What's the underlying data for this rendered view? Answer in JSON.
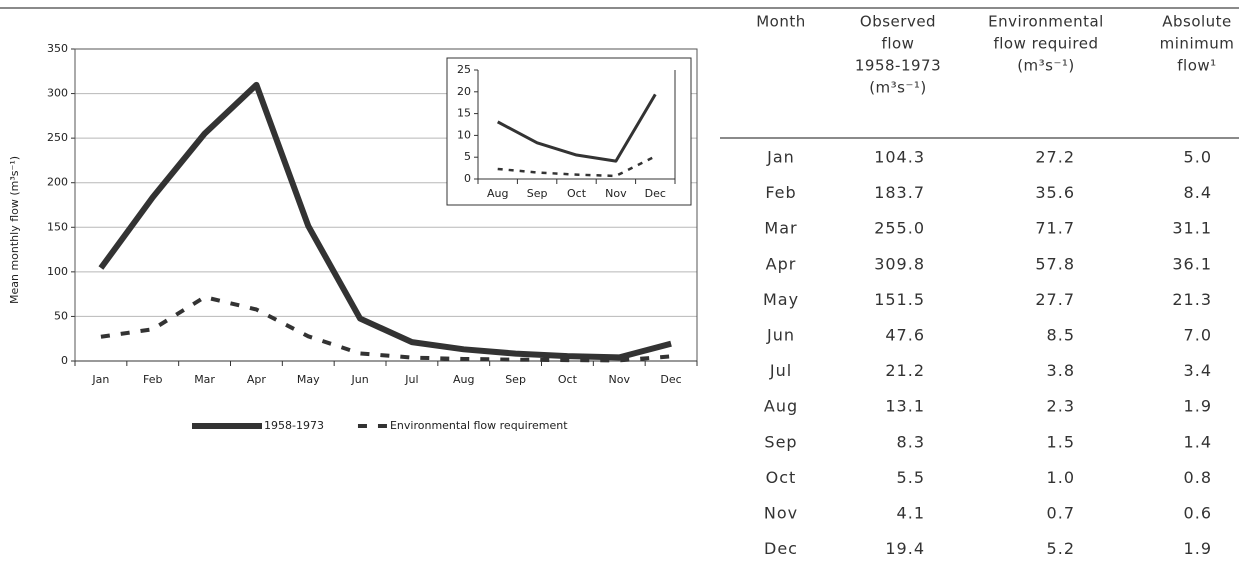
{
  "chart_data": [
    {
      "type": "line",
      "y_label": "Mean monthly flow (m³s⁻¹)",
      "categories": [
        "Jan",
        "Feb",
        "Mar",
        "Apr",
        "May",
        "Jun",
        "Jul",
        "Aug",
        "Sep",
        "Oct",
        "Nov",
        "Dec"
      ],
      "series": [
        {
          "name": "1958-1973",
          "color": "#333333",
          "style": "solid",
          "values": [
            104.3,
            183.7,
            255.0,
            309.8,
            151.5,
            47.6,
            21.2,
            13.1,
            8.3,
            5.5,
            4.1,
            19.4
          ]
        },
        {
          "name": "Environmental flow requirement",
          "color": "#333333",
          "style": "dashed",
          "values": [
            27.2,
            35.6,
            71.7,
            57.8,
            27.7,
            8.5,
            3.8,
            2.3,
            1.5,
            1.0,
            0.7,
            5.2
          ]
        }
      ],
      "ylim": [
        0,
        350
      ],
      "yticks": [
        0,
        50,
        100,
        150,
        200,
        250,
        300,
        350
      ],
      "grid": true,
      "legend": "bottom"
    },
    {
      "type": "line",
      "categories": [
        "Aug",
        "Sep",
        "Oct",
        "Nov",
        "Dec"
      ],
      "series": [
        {
          "color": "#333333",
          "style": "solid",
          "values": [
            13.1,
            8.3,
            5.5,
            4.1,
            19.4
          ]
        },
        {
          "color": "#333333",
          "style": "dashed",
          "values": [
            2.3,
            1.5,
            1.0,
            0.7,
            5.2
          ]
        }
      ],
      "ylim": [
        0,
        25
      ],
      "yticks": [
        0,
        5,
        10,
        15,
        20,
        25
      ],
      "grid": false
    }
  ],
  "table": {
    "header": [
      [
        "Month"
      ],
      [
        "Observed",
        "flow",
        "1958-1973",
        "(m³s⁻¹)"
      ],
      [
        "Environmental",
        "flow required",
        "(m³s⁻¹)"
      ],
      [
        "Absolute",
        "minimum",
        "flow¹"
      ]
    ],
    "rows": [
      [
        "Jan",
        "104.3",
        "27.2",
        "5.0"
      ],
      [
        "Feb",
        "183.7",
        "35.6",
        "8.4"
      ],
      [
        "Mar",
        "255.0",
        "71.7",
        "31.1"
      ],
      [
        "Apr",
        "309.8",
        "57.8",
        "36.1"
      ],
      [
        "May",
        "151.5",
        "27.7",
        "21.3"
      ],
      [
        "Jun",
        "47.6",
        "8.5",
        "7.0"
      ],
      [
        "Jul",
        "21.2",
        "3.8",
        "3.4"
      ],
      [
        "Aug",
        "13.1",
        "2.3",
        "1.9"
      ],
      [
        "Sep",
        "8.3",
        "1.5",
        "1.4"
      ],
      [
        "Oct",
        "5.5",
        "1.0",
        "0.8"
      ],
      [
        "Nov",
        "4.1",
        "0.7",
        "0.6"
      ],
      [
        "Dec",
        "19.4",
        "5.2",
        "1.9"
      ]
    ]
  }
}
